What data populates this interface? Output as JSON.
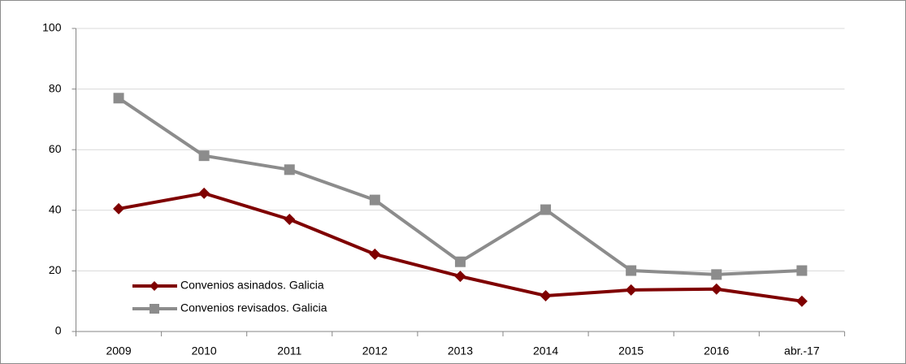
{
  "chart_data": {
    "type": "line",
    "categories": [
      "2009",
      "2010",
      "2011",
      "2012",
      "2013",
      "2014",
      "2015",
      "2016",
      "abr.-17"
    ],
    "series": [
      {
        "name": "Convenios asinados. Galicia",
        "color": "#7f0000",
        "marker": "diamond",
        "values": [
          40.5,
          45.6,
          37,
          25.5,
          18.2,
          11.8,
          13.7,
          14,
          10
        ]
      },
      {
        "name": "Convenios revisados. Galicia",
        "color": "#8c8c8c",
        "marker": "square",
        "values": [
          77,
          58,
          53.4,
          43.4,
          23,
          40.2,
          20.1,
          18.8,
          20.1
        ]
      }
    ],
    "ylim": [
      0,
      100
    ],
    "yticks": [
      0,
      20,
      40,
      60,
      80,
      100
    ],
    "grid": true,
    "legend": "lower left"
  }
}
